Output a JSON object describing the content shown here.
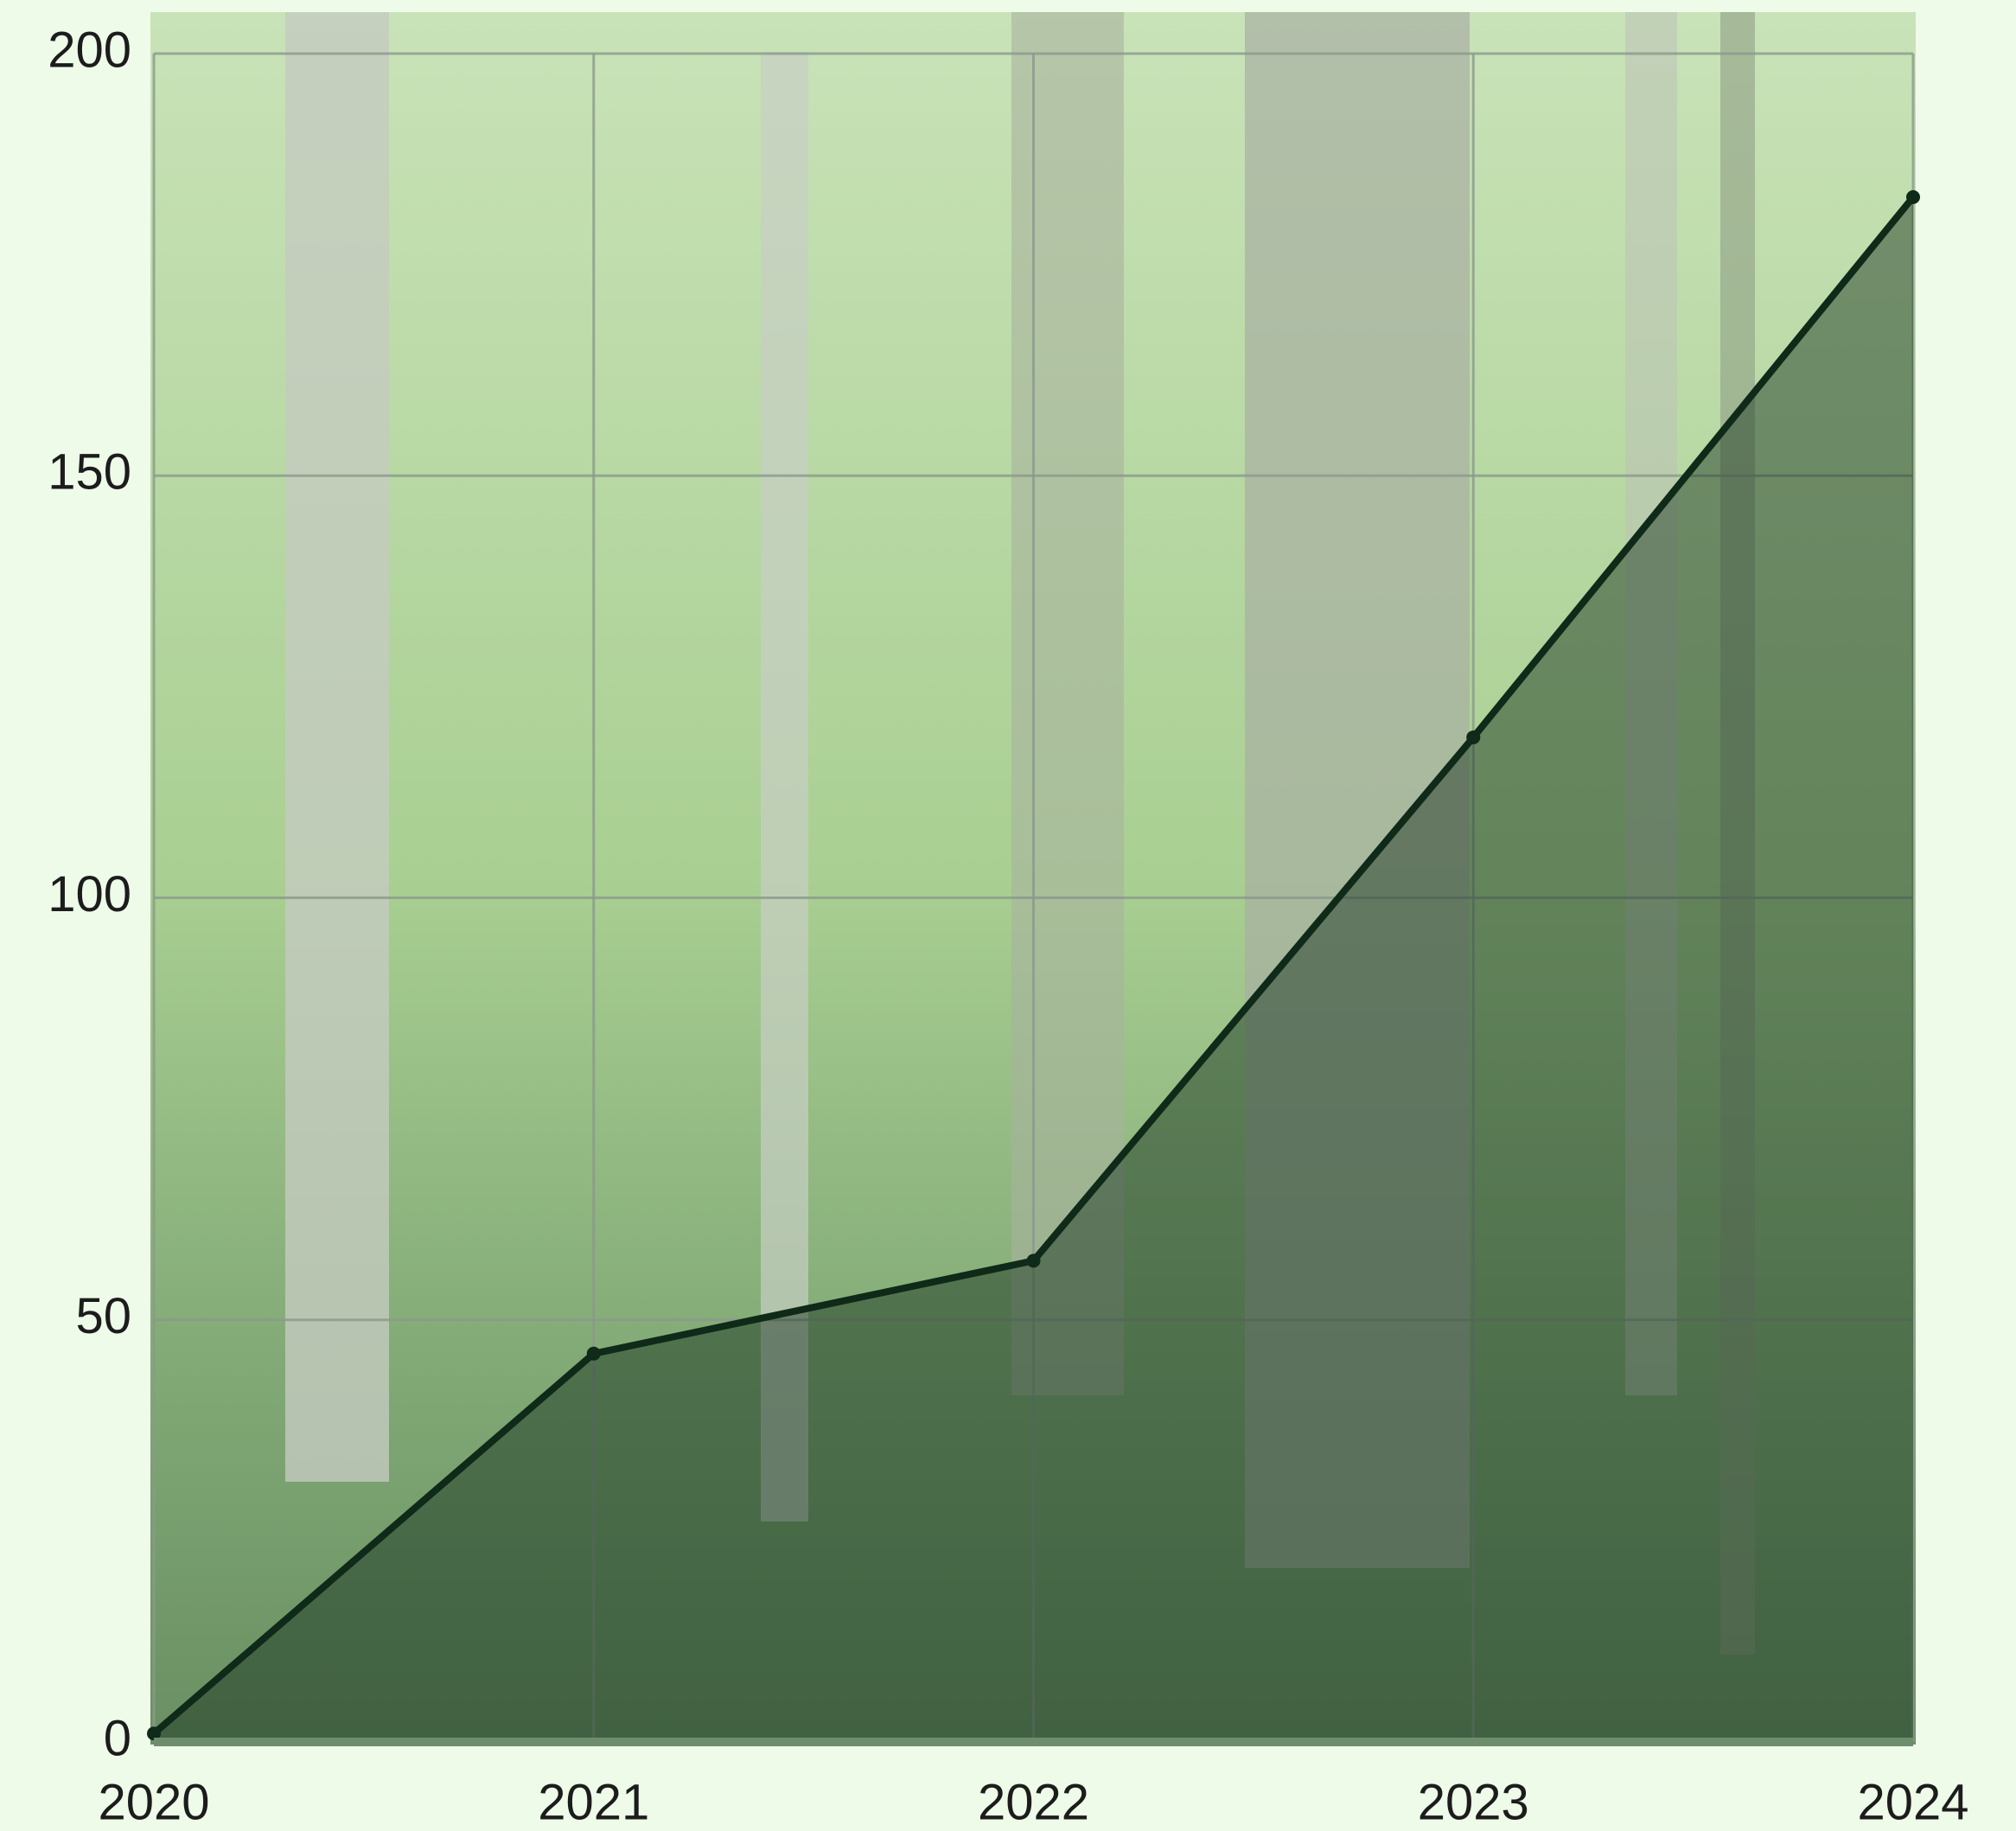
{
  "chart_data": {
    "type": "area",
    "x": [
      2020,
      2021,
      2022,
      2023,
      2024
    ],
    "series": [
      {
        "color": "#0f2a18",
        "values": [
          1,
          46,
          57,
          119,
          183
        ]
      }
    ],
    "xlim": [
      2020,
      2024
    ],
    "xticks": [
      2020,
      2021,
      2022,
      2023,
      2024
    ],
    "ylim": [
      0,
      200
    ],
    "yticks": [
      0,
      50,
      100,
      150,
      200
    ],
    "grid": true
  }
}
